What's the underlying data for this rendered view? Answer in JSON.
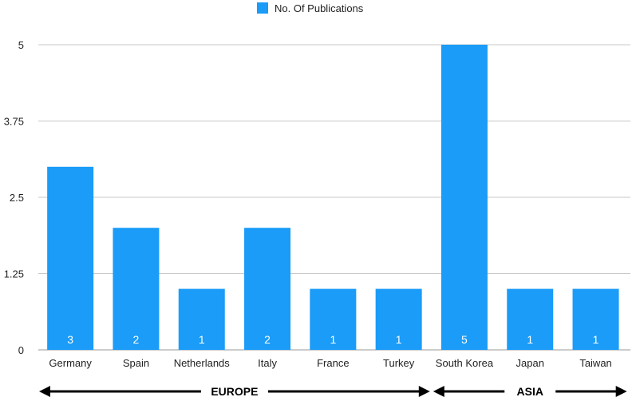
{
  "chart_data": {
    "type": "bar",
    "categories": [
      "Germany",
      "Spain",
      "Netherlands",
      "Italy",
      "France",
      "Turkey",
      "South Korea",
      "Japan",
      "Taiwan"
    ],
    "series": [
      {
        "name": "No. Of Publications",
        "values": [
          3,
          2,
          1,
          2,
          1,
          1,
          5,
          1,
          1
        ],
        "color": "#1a9cf8"
      }
    ],
    "yticks": [
      "0",
      "1.25",
      "2.5",
      "3.75",
      "5"
    ],
    "ylim": [
      0,
      5
    ],
    "grid": true,
    "legend_position": "top-center",
    "groups": [
      {
        "label": "EUROPE",
        "from": "Germany",
        "to": "Turkey"
      },
      {
        "label": "ASIA",
        "from": "South Korea",
        "to": "Taiwan"
      }
    ]
  }
}
